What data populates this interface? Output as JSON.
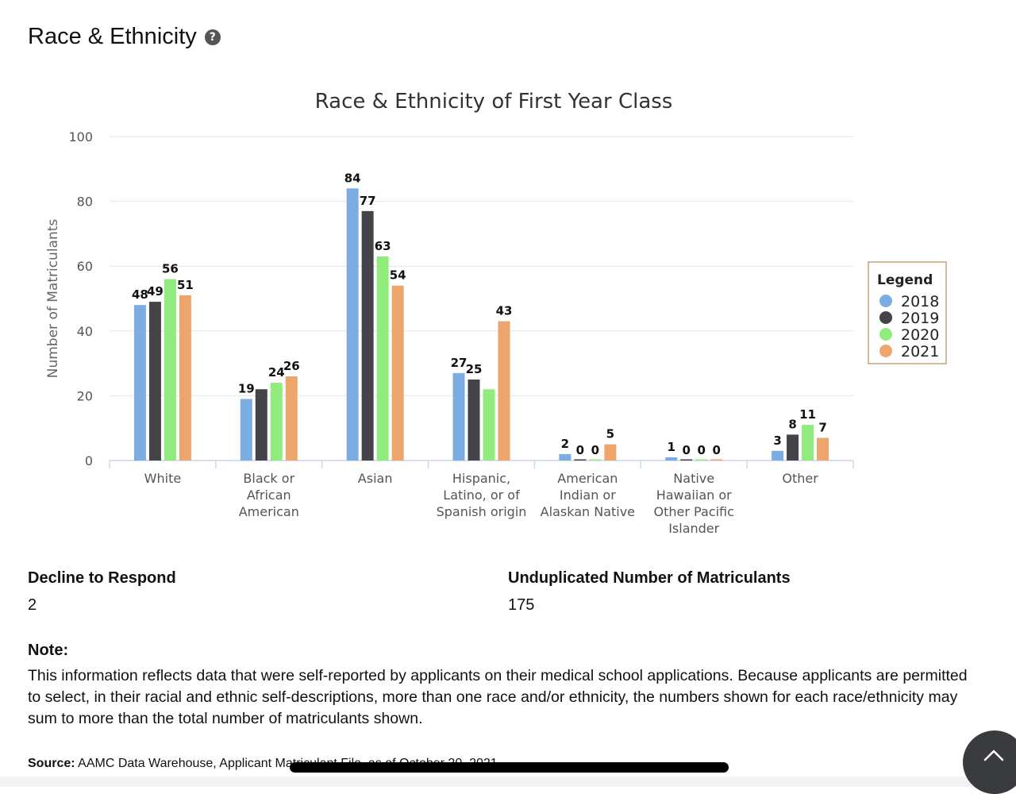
{
  "page": {
    "section_title": "Race & Ethnicity",
    "help_icon": "question-circle-icon",
    "help_glyph": "?"
  },
  "stats": {
    "decline_label": "Decline to Respond",
    "decline_value": "2",
    "unduplicated_label": "Unduplicated Number of Matriculants",
    "unduplicated_value": "175"
  },
  "note": {
    "title": "Note:",
    "text": "This information reflects data that were self-reported by applicants on their medical school applications. Because applicants are permitted to select, in their racial and ethnic self-descriptions, more than one race and/or ethnicity, the numbers shown for each race/ethnicity may sum to more than the total number of matriculants shown."
  },
  "source": {
    "label": "Source:",
    "text": "AAMC Data Warehouse, Applicant Matriculant File, as of October 20, 2021"
  },
  "scroll_top_icon": "chevron-up-icon",
  "colors": {
    "2018": "#7cade2",
    "2019": "#434348",
    "2020": "#90ed7d",
    "2021": "#eea56b",
    "legend_border": "#c9a27a",
    "grid": "#e6e6e6"
  },
  "chart_data": {
    "type": "bar",
    "title": "Race & Ethnicity of First Year Class",
    "ylabel": "Number of Matriculants",
    "xlabel": "",
    "ylim": [
      0,
      100
    ],
    "yticks": [
      0,
      20,
      40,
      60,
      80,
      100
    ],
    "grid": true,
    "legend_title": "Legend",
    "legend_position": "right",
    "categories": [
      [
        "White"
      ],
      [
        "Black or",
        "African",
        "American"
      ],
      [
        "Asian"
      ],
      [
        "Hispanic,",
        "Latino, or of",
        "Spanish origin"
      ],
      [
        "American",
        "Indian or",
        "Alaskan Native"
      ],
      [
        "Native",
        "Hawaiian or",
        "Other Pacific",
        "Islander"
      ],
      [
        "Other"
      ]
    ],
    "series": [
      {
        "name": "2018",
        "values": [
          48,
          19,
          84,
          27,
          2,
          1,
          3
        ]
      },
      {
        "name": "2019",
        "values": [
          49,
          22,
          77,
          25,
          0,
          0,
          8
        ]
      },
      {
        "name": "2020",
        "values": [
          56,
          24,
          63,
          22,
          0,
          0,
          11
        ]
      },
      {
        "name": "2021",
        "values": [
          51,
          26,
          54,
          43,
          5,
          0,
          7
        ]
      }
    ],
    "data_labels": [
      [
        "48",
        "19",
        "84",
        "27",
        "2",
        "1",
        "3"
      ],
      [
        "49",
        "",
        "77",
        "25",
        "0",
        "0",
        "8"
      ],
      [
        "56",
        "24",
        "63",
        "",
        "0",
        "0",
        "11"
      ],
      [
        "51",
        "26",
        "54",
        "43",
        "5",
        "0",
        "7"
      ]
    ]
  }
}
